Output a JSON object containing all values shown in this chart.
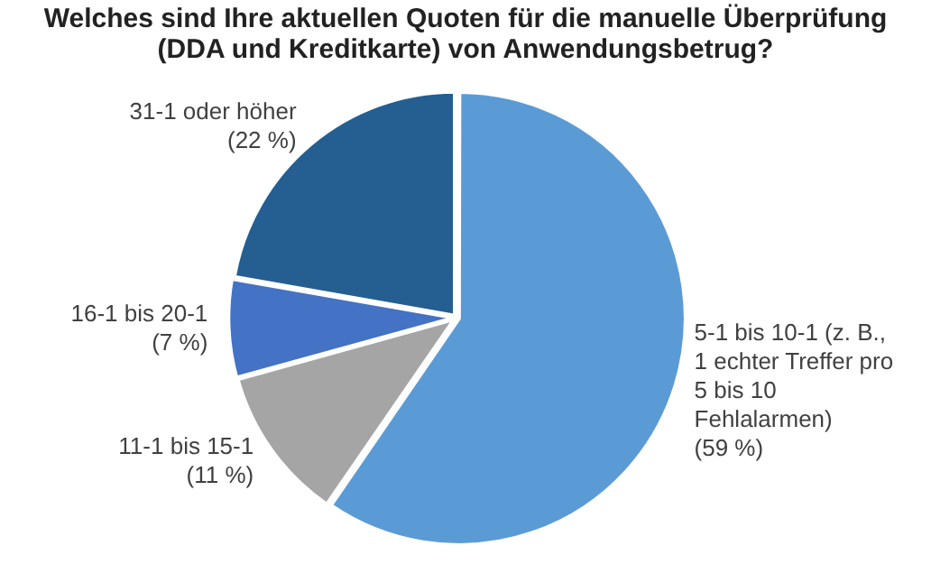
{
  "chart_data": {
    "type": "pie",
    "title": "Welches sind Ihre aktuellen Quoten für die manuelle Überprüfung (DDA und Kreditkarte) von Anwendungsbetrug?",
    "categories": [
      "5-1 bis 10-1 (z. B., 1 echter Treffer pro 5 bis 10 Fehlalarmen)",
      "11-1 bis 15-1",
      "16-1 bis 20-1",
      "31-1 oder höher"
    ],
    "values": [
      59,
      11,
      7,
      22
    ],
    "value_labels": [
      "(59 %)",
      "(11 %)",
      "(7 %)",
      "(22 %)"
    ],
    "colors": [
      "#5b9bd5",
      "#a5a5a5",
      "#4472c4",
      "#255e91"
    ],
    "legend": false
  }
}
